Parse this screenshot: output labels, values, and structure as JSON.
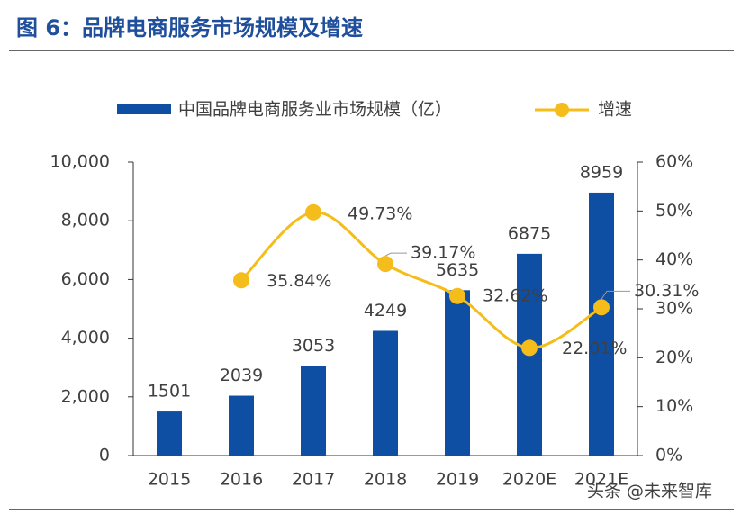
{
  "chart_data": {
    "type": "bar",
    "title": "图 6：品牌电商服务市场规模及增速",
    "watermark": "头条 @未来智库",
    "categories": [
      "2015",
      "2016",
      "2017",
      "2018",
      "2019",
      "2020E",
      "2021E"
    ],
    "series": [
      {
        "name": "中国品牌电商服务业市场规模（亿）",
        "type": "bar",
        "color": "#0e4ea3",
        "values": [
          1501,
          2039,
          3053,
          4249,
          5635,
          6875,
          8959
        ]
      },
      {
        "name": "增速",
        "type": "line",
        "axis": "y2",
        "color": "#f4bd1c",
        "values": [
          null,
          35.84,
          49.73,
          39.17,
          32.62,
          22.01,
          30.31
        ],
        "value_labels": [
          null,
          "35.84%",
          "49.73%",
          "39.17%",
          "32.62%",
          "22.01%",
          "30.31%"
        ]
      }
    ],
    "ylim": [
      0,
      10000
    ],
    "yticks": [
      0,
      {
        "value": 2000,
        "label": "2,000"
      },
      {
        "value": 4000,
        "label": "4,000"
      },
      {
        "value": 6000,
        "label": "6,000"
      },
      {
        "value": 8000,
        "label": "8,000"
      },
      {
        "value": 10000,
        "label": "10,000"
      }
    ],
    "y2lim": [
      0,
      60
    ],
    "y2ticks": [
      {
        "value": 0,
        "label": "0%"
      },
      {
        "value": 10,
        "label": "10%"
      },
      {
        "value": 20,
        "label": "20%"
      },
      {
        "value": 30,
        "label": "30%"
      },
      {
        "value": 40,
        "label": "40%"
      },
      {
        "value": 50,
        "label": "50%"
      },
      {
        "value": 60,
        "label": "60%"
      }
    ]
  }
}
